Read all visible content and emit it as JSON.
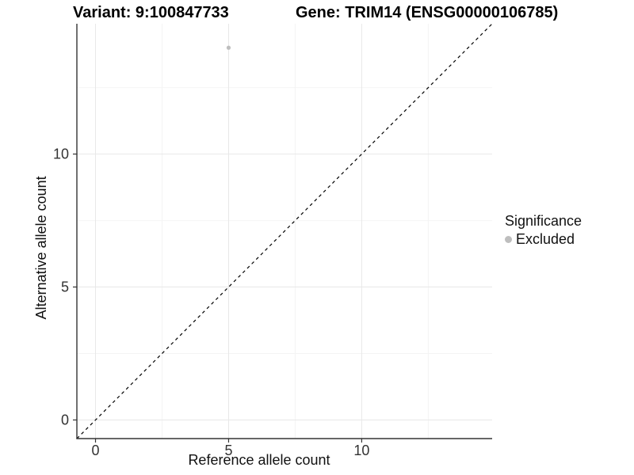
{
  "title": {
    "variant": "Variant: 9:100847733",
    "gene": "Gene: TRIM14 (ENSG00000106785)"
  },
  "chart_data": {
    "type": "scatter",
    "xlabel": "Reference allele count",
    "ylabel": "Alternative allele count",
    "xlim": [
      -0.7,
      14.9
    ],
    "ylim": [
      -0.7,
      14.9
    ],
    "x_ticks": [
      0,
      5,
      10
    ],
    "y_ticks": [
      0,
      5,
      10
    ],
    "minor_gridlines": [
      2.5,
      7.5,
      12.5
    ],
    "grid": true,
    "points": [
      {
        "x": 5,
        "y": 14,
        "series": "Excluded"
      }
    ],
    "reference_line": {
      "type": "identity",
      "slope": 1,
      "intercept": 0,
      "style": "dashed",
      "color": "#000000"
    },
    "legend": {
      "title": "Significance",
      "position": "right",
      "items": [
        {
          "label": "Excluded",
          "color": "#bebebe"
        }
      ]
    }
  },
  "colors": {
    "point": "#bebebe",
    "grid_major": "#e8e8e8",
    "grid_minor": "#f4f4f4",
    "axis_line": "#333333",
    "tick_label": "#333333",
    "dashed_line": "#000000"
  }
}
